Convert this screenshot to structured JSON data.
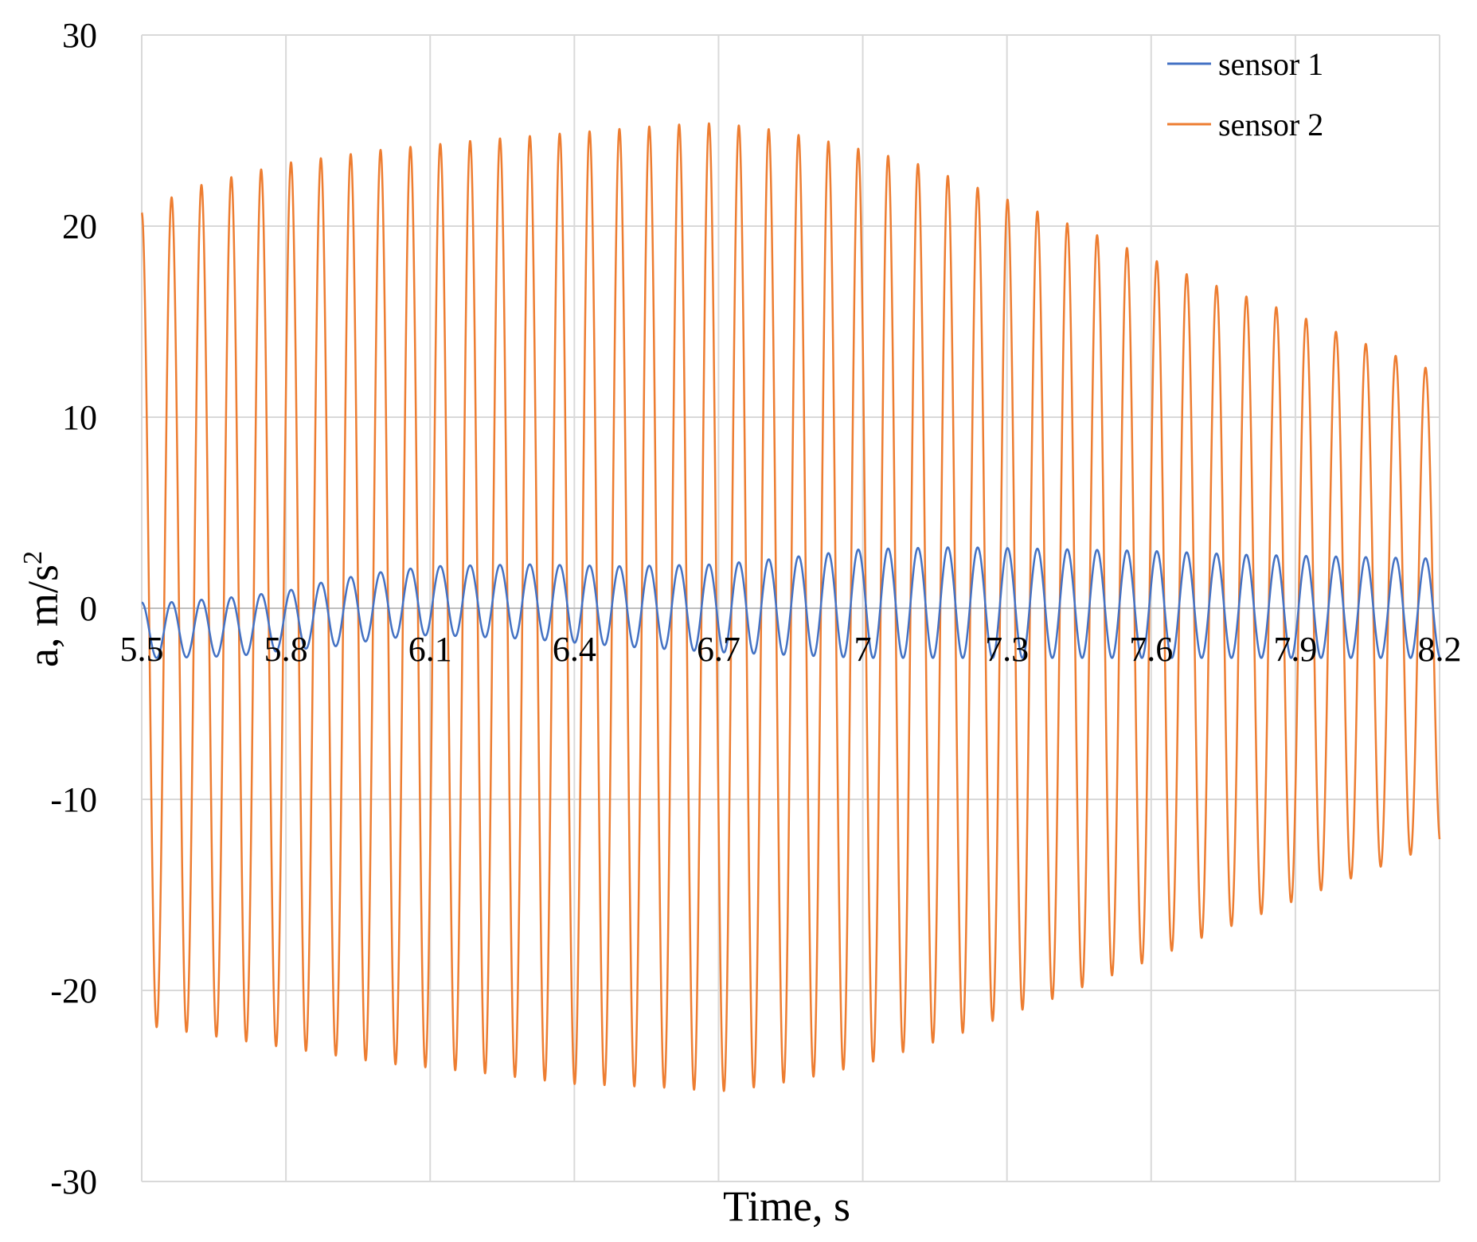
{
  "chart_data": {
    "type": "line",
    "title": "",
    "xlabel": "Time, s",
    "ylabel_main": "a, m/s",
    "ylabel_sup": "2",
    "xlim": [
      5.5,
      8.2
    ],
    "ylim": [
      -30,
      30
    ],
    "x_ticks": [
      5.5,
      5.8,
      6.1,
      6.4,
      6.7,
      7.0,
      7.3,
      7.6,
      7.9,
      8.2
    ],
    "x_tick_labels": [
      "5.5",
      "5.8",
      "6.1",
      "6.4",
      "6.7",
      "7",
      "7.3",
      "7.6",
      "7.9",
      "8.2"
    ],
    "y_ticks": [
      -30,
      -20,
      -10,
      0,
      10,
      20,
      30
    ],
    "y_tick_labels": [
      "-30",
      "-20",
      "-10",
      "0",
      "10",
      "20",
      "30"
    ],
    "x_axis_position": "y=0",
    "grid": true,
    "legend_position": "top-right",
    "series": [
      {
        "name": "sensor 1",
        "color": "#4472C4",
        "description_note": "oscillation, frequency approx 16 Hz; envelope from peak values",
        "frequency_hz": 16.1,
        "peaks": [
          {
            "x": 5.55,
            "max": 0.3,
            "min": -2.6
          },
          {
            "x": 5.7,
            "max": 0.6,
            "min": -2.5
          },
          {
            "x": 5.8,
            "max": 0.9,
            "min": -2.2
          },
          {
            "x": 5.9,
            "max": 1.5,
            "min": -2.0
          },
          {
            "x": 6.0,
            "max": 1.9,
            "min": -1.6
          },
          {
            "x": 6.1,
            "max": 2.2,
            "min": -1.4
          },
          {
            "x": 6.3,
            "max": 2.3,
            "min": -1.6
          },
          {
            "x": 6.5,
            "max": 2.2,
            "min": -2.0
          },
          {
            "x": 6.7,
            "max": 2.3,
            "min": -2.3
          },
          {
            "x": 6.9,
            "max": 2.8,
            "min": -2.5
          },
          {
            "x": 7.0,
            "max": 3.1,
            "min": -2.6
          },
          {
            "x": 7.2,
            "max": 3.2,
            "min": -2.6
          },
          {
            "x": 7.4,
            "max": 3.1,
            "min": -2.6
          },
          {
            "x": 7.6,
            "max": 3.0,
            "min": -2.6
          },
          {
            "x": 7.8,
            "max": 2.8,
            "min": -2.6
          },
          {
            "x": 8.0,
            "max": 2.7,
            "min": -2.6
          },
          {
            "x": 8.2,
            "max": 2.6,
            "min": -2.6
          }
        ]
      },
      {
        "name": "sensor 2",
        "color": "#ED7D31",
        "frequency_hz": 16.1,
        "peaks": [
          {
            "x": 5.5,
            "max": 20.7,
            "min": -21.8
          },
          {
            "x": 5.6,
            "max": 22.0,
            "min": -22.2
          },
          {
            "x": 5.8,
            "max": 23.3,
            "min": -23.0
          },
          {
            "x": 6.0,
            "max": 24.0,
            "min": -23.8
          },
          {
            "x": 6.2,
            "max": 24.5,
            "min": -24.3
          },
          {
            "x": 6.4,
            "max": 24.9,
            "min": -24.9
          },
          {
            "x": 6.6,
            "max": 25.3,
            "min": -25.1
          },
          {
            "x": 6.7,
            "max": 25.4,
            "min": -25.3
          },
          {
            "x": 6.8,
            "max": 25.1,
            "min": -25.0
          },
          {
            "x": 6.9,
            "max": 24.6,
            "min": -24.5
          },
          {
            "x": 7.0,
            "max": 24.0,
            "min": -23.9
          },
          {
            "x": 7.1,
            "max": 23.4,
            "min": -23.1
          },
          {
            "x": 7.2,
            "max": 22.4,
            "min": -22.3
          },
          {
            "x": 7.3,
            "max": 21.4,
            "min": -21.3
          },
          {
            "x": 7.4,
            "max": 20.4,
            "min": -20.4
          },
          {
            "x": 7.5,
            "max": 19.4,
            "min": -19.4
          },
          {
            "x": 7.6,
            "max": 18.3,
            "min": -18.4
          },
          {
            "x": 7.7,
            "max": 17.2,
            "min": -17.3
          },
          {
            "x": 7.8,
            "max": 16.3,
            "min": -16.3
          },
          {
            "x": 7.9,
            "max": 15.4,
            "min": -15.3
          },
          {
            "x": 8.0,
            "max": 14.3,
            "min": -14.3
          },
          {
            "x": 8.1,
            "max": 13.3,
            "min": -13.3
          },
          {
            "x": 8.2,
            "max": 12.3,
            "min": -12.3
          }
        ]
      }
    ]
  }
}
